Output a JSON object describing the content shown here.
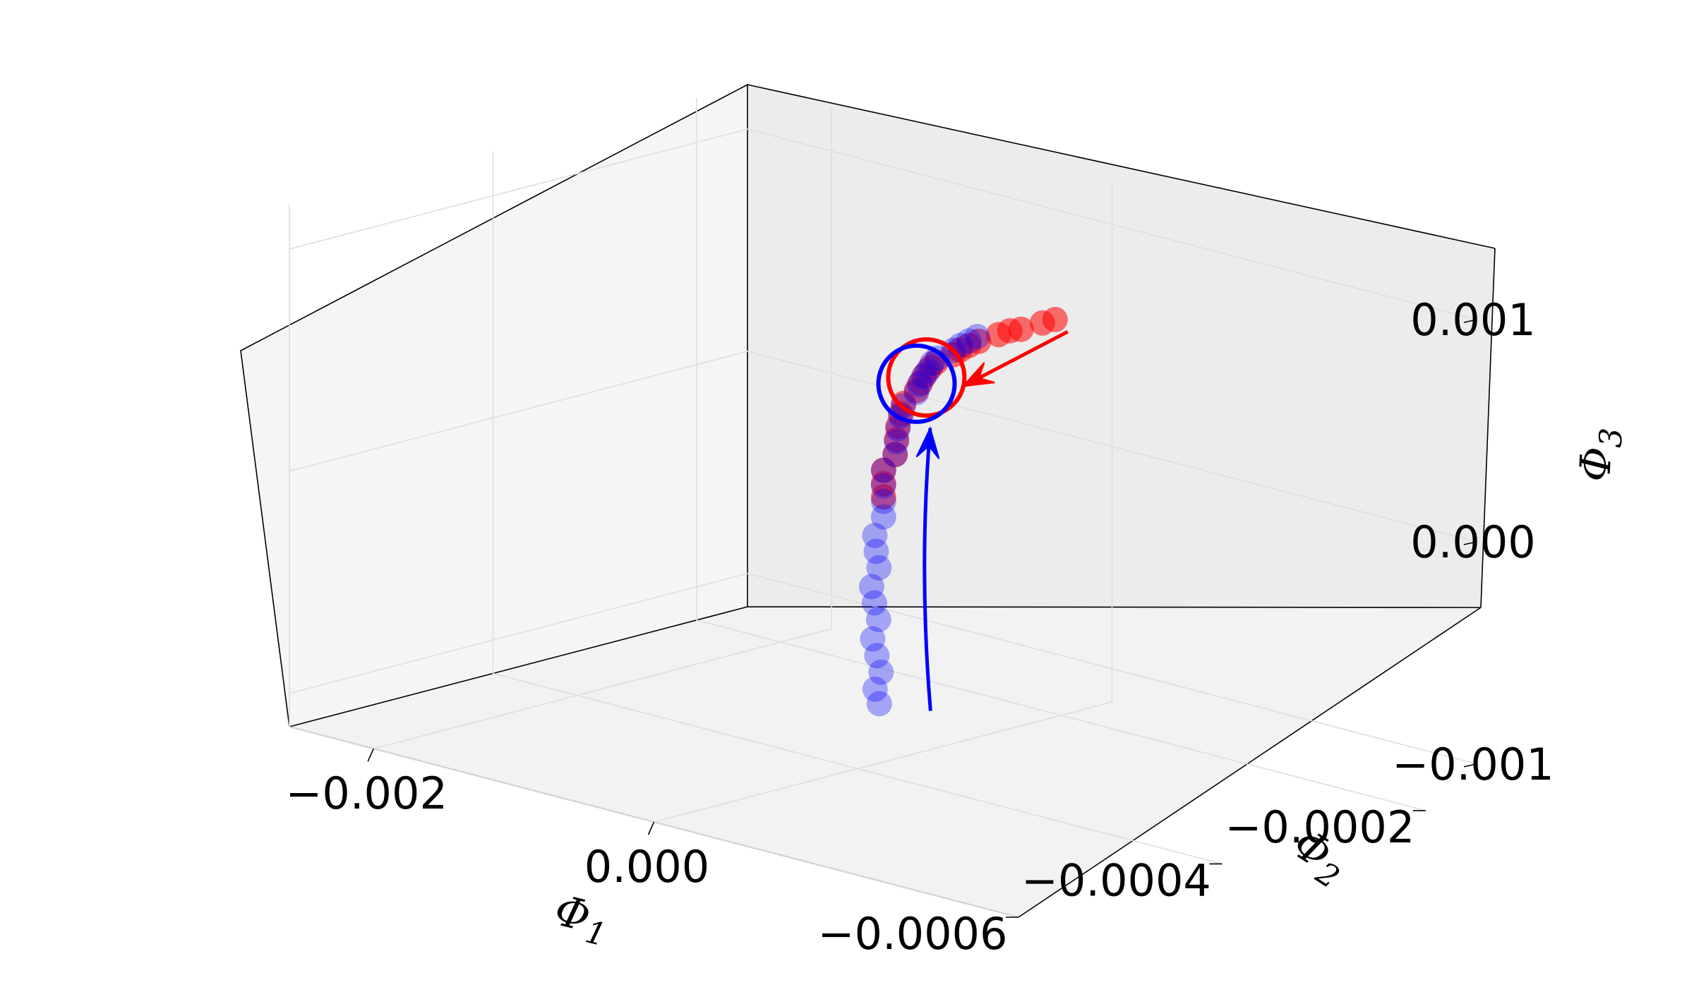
{
  "chart_data": {
    "type": "scatter",
    "projection": "3d",
    "grid": true,
    "xlabel": "Φ",
    "xlabel_sub": "1",
    "ylabel": "Φ",
    "ylabel_sub": "2",
    "zlabel": "Φ",
    "zlabel_sub": "3",
    "xlim": [
      -0.0026,
      0.0026
    ],
    "ylim": [
      -0.0006,
      -0.00015
    ],
    "zlim": [
      -0.00115,
      0.0012
    ],
    "x_ticks": [
      "−0.002",
      "0.000"
    ],
    "y_ticks": [
      "−0.0006",
      "−0.0004",
      "−0.0002"
    ],
    "z_ticks": [
      "−0.001",
      "0.000",
      "0.001"
    ],
    "x_tick_values": [
      -0.002,
      0.0
    ],
    "y_tick_values": [
      -0.0006,
      -0.0004,
      -0.0002
    ],
    "z_tick_values": [
      -0.001,
      0.0,
      0.001
    ],
    "colors": {
      "series_red": "#ff0000",
      "series_blue": "#0000ff",
      "pane_left": "#f5f5f5",
      "pane_back": "#ececec",
      "pane_floor": "#f2f2f2",
      "grid": "#dedede"
    },
    "series": [
      {
        "color": "#ff0000",
        "marker": "circle",
        "alpha": 0.55,
        "points": [
          [
            0.00061,
            -0.00029,
            0.00084
          ],
          [
            0.00052,
            -0.00029,
            0.00081
          ],
          [
            0.00044,
            -0.0003,
            0.00078
          ],
          [
            0.00036,
            -0.0003,
            0.00076
          ],
          [
            0.00028,
            -0.0003,
            0.00073
          ],
          [
            0.00021,
            -0.00031,
            0.0007
          ],
          [
            0.00014,
            -0.00031,
            0.00067
          ],
          [
            8e-05,
            -0.00031,
            0.00064
          ],
          [
            3e-05,
            -0.00031,
            0.00061
          ],
          [
            -2e-05,
            -0.00032,
            0.00058
          ],
          [
            -6e-05,
            -0.00032,
            0.00055
          ],
          [
            -0.0001,
            -0.00032,
            0.00051
          ],
          [
            -0.00013,
            -0.00032,
            0.00047
          ],
          [
            -0.00016,
            -0.00032,
            0.00043
          ],
          [
            -0.00018,
            -0.00033,
            0.00038
          ],
          [
            -0.0002,
            -0.00033,
            0.00033
          ],
          [
            -0.00022,
            -0.00033,
            0.00027
          ],
          [
            -0.00023,
            -0.00033,
            0.00021
          ],
          [
            -0.00024,
            -0.00033,
            0.00014
          ],
          [
            -0.00025,
            -0.00034,
            8e-05
          ],
          [
            -0.00025,
            -0.00034,
            2e-05
          ],
          [
            -0.00025,
            -0.00034,
            -4e-05
          ]
        ]
      },
      {
        "color": "#0000ff",
        "marker": "circle",
        "alpha": 0.32,
        "points": [
          [
            0.0002,
            -0.00031,
            0.00072
          ],
          [
            0.00014,
            -0.00031,
            0.00069
          ],
          [
            8e-05,
            -0.00031,
            0.00066
          ],
          [
            3e-05,
            -0.00031,
            0.00063
          ],
          [
            -1e-05,
            -0.00032,
            0.0006
          ],
          [
            -5e-05,
            -0.00032,
            0.00057
          ],
          [
            -8e-05,
            -0.00032,
            0.00053
          ],
          [
            -0.00011,
            -0.00032,
            0.0005
          ],
          [
            -0.00014,
            -0.00032,
            0.00046
          ],
          [
            -0.00016,
            -0.00032,
            0.00042
          ],
          [
            -0.00018,
            -0.00033,
            0.00037
          ],
          [
            -0.0002,
            -0.00033,
            0.00032
          ],
          [
            -0.00022,
            -0.00033,
            0.00026
          ],
          [
            -0.00023,
            -0.00033,
            0.0002
          ],
          [
            -0.00024,
            -0.00033,
            0.00014
          ],
          [
            -0.00025,
            -0.00034,
            8e-05
          ],
          [
            -0.00025,
            -0.00034,
            1e-05
          ],
          [
            -0.00025,
            -0.00034,
            -6e-05
          ],
          [
            -0.00025,
            -0.00034,
            -0.00013
          ],
          [
            -0.00024,
            -0.00035,
            -0.0002
          ],
          [
            -0.00023,
            -0.00035,
            -0.00027
          ],
          [
            -0.00021,
            -0.00035,
            -0.00034
          ],
          [
            -0.00019,
            -0.00036,
            -0.00041
          ],
          [
            -0.00017,
            -0.00036,
            -0.00048
          ],
          [
            -0.00014,
            -0.00036,
            -0.00055
          ],
          [
            -0.00011,
            -0.00037,
            -0.00062
          ],
          [
            -8e-05,
            -0.00037,
            -0.00069
          ],
          [
            -5e-05,
            -0.00037,
            -0.00076
          ],
          [
            -2e-05,
            -0.00038,
            -0.00082
          ],
          [
            1e-05,
            -0.00038,
            -0.00088
          ]
        ]
      }
    ],
    "annotations": [
      {
        "type": "circle",
        "color": "#ff0000",
        "center": [
          -9e-05,
          -0.00032,
          0.0005
        ]
      },
      {
        "type": "circle",
        "color": "#0000ff",
        "center": [
          -0.00016,
          -0.00032,
          0.00046
        ]
      },
      {
        "type": "arrow",
        "color": "#ff0000",
        "path": [
          [
            0.0007,
            -0.00029,
            0.0008
          ],
          [
            0.0001,
            -0.00031,
            0.00048
          ]
        ]
      },
      {
        "type": "arrow",
        "color": "#0000ff",
        "path": [
          [
            0.00023,
            -0.00036,
            -0.0009
          ],
          [
            0.0,
            -0.00034,
            -0.00032
          ],
          [
            1e-05,
            -0.00033,
            0.0003
          ]
        ]
      }
    ]
  }
}
